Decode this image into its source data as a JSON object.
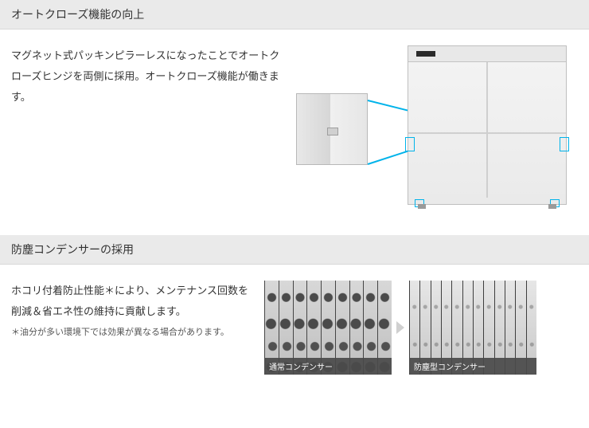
{
  "section1": {
    "heading": "オートクローズ機能の向上",
    "body": "マグネット式パッキンピラーレスになったことでオートクローズヒンジを両側に採用。オートクローズ機能が働きます。",
    "illustration": {
      "highlight_color": "#00b3ea",
      "fridge_body_color": "#eaeaea",
      "fridge_border_color": "#bfbfbf",
      "detail_border_color": "#b8b8b8",
      "highlight_boxes": 4
    }
  },
  "section2": {
    "heading": "防塵コンデンサーの採用",
    "body": "ホコリ付着防止性能＊により、メンテナンス回数を削減＆省エネ性の維持に貢献します。",
    "footnote": "＊油分が多い環境下では効果が異なる場合があります。",
    "condensers": {
      "normal": {
        "caption": "通常コンデンサー",
        "fin_count": 9,
        "dirt_level": "heavy",
        "caption_bg": "#4a4a4a",
        "caption_color": "#ffffff"
      },
      "dustproof": {
        "caption": "防塵型コンデンサー",
        "fin_count": 12,
        "dirt_level": "light",
        "caption_bg": "#4a4a4a",
        "caption_color": "#ffffff"
      },
      "arrow_color": "#d0d0d0"
    }
  },
  "colors": {
    "header_bg": "#eaeaea",
    "header_border": "#d8d8d8",
    "text": "#333333",
    "footnote_text": "#555555",
    "page_bg": "#ffffff"
  },
  "typography": {
    "heading_fontsize": 14,
    "body_fontsize": 13,
    "footnote_fontsize": 11,
    "body_lineheight": 2
  }
}
